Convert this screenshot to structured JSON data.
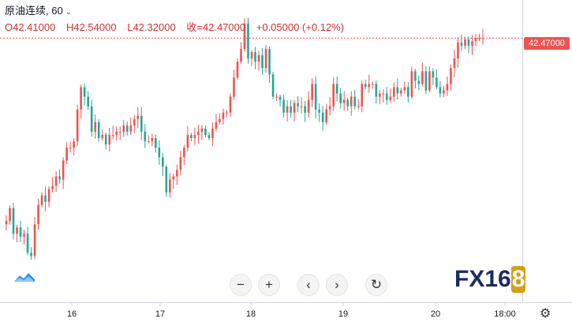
{
  "legend": {
    "symbol": "原油连续, 60",
    "open_label": "O42.41000",
    "high_label": "H42.54000",
    "low_label": "L42.32000",
    "close_label": "收=42.47000",
    "change_label": "+0.05000 (+0.12%)"
  },
  "price_tag": "42.47000",
  "colors": {
    "up": "#ef5350",
    "down": "#26a69a",
    "price_line": "#ef5350",
    "axis": "#d1d4dc"
  },
  "toolbar": {
    "zoom_out": "−",
    "zoom_in": "+",
    "scroll_left": "‹",
    "scroll_right": "›",
    "reset": "↻"
  },
  "watermark": {
    "text_main": "FX16",
    "text_badge": "8"
  },
  "icons": {
    "settings": "gear-icon",
    "tradingview": "tradingview-logo-icon"
  },
  "chart_data": {
    "type": "candlestick",
    "interval": "60",
    "last_price": 42.47,
    "x_ticks": [
      "16",
      "17",
      "18",
      "19",
      "20",
      "18:00"
    ],
    "y_range": [
      38.36,
      42.82
    ],
    "bar_count": 135,
    "closes": [
      39.6,
      39.8,
      39.4,
      39.5,
      39.35,
      39.4,
      39.1,
      39.05,
      39.55,
      39.85,
      40.0,
      39.9,
      40.1,
      40.15,
      40.3,
      40.25,
      40.55,
      40.75,
      40.75,
      40.85,
      41.35,
      41.7,
      41.55,
      41.4,
      41.0,
      41.15,
      40.9,
      40.95,
      40.8,
      40.95,
      40.95,
      41.0,
      41.0,
      41.1,
      41.0,
      41.1,
      41.2,
      41.25,
      41.0,
      40.85,
      40.85,
      40.9,
      40.75,
      40.6,
      40.45,
      40.05,
      40.25,
      40.3,
      40.4,
      40.6,
      40.75,
      40.95,
      40.9,
      40.95,
      41.0,
      41.05,
      40.95,
      40.9,
      41.05,
      41.15,
      41.2,
      41.3,
      41.3,
      41.55,
      41.85,
      42.1,
      42.3,
      42.7,
      42.15,
      42.25,
      42.1,
      42.2,
      42.0,
      42.3,
      41.9,
      41.55,
      41.55,
      41.5,
      41.3,
      41.4,
      41.3,
      41.45,
      41.4,
      41.4,
      41.3,
      41.5,
      41.75,
      41.35,
      41.3,
      41.15,
      41.35,
      41.4,
      41.75,
      41.6,
      41.45,
      41.5,
      41.4,
      41.55,
      41.4,
      41.4,
      41.75,
      41.7,
      41.75,
      41.75,
      41.55,
      41.6,
      41.6,
      41.5,
      41.55,
      41.7,
      41.6,
      41.65,
      41.7,
      41.55,
      41.95,
      41.8,
      41.75,
      41.95,
      41.65,
      41.95,
      41.85,
      41.7,
      41.6,
      41.65,
      41.75,
      42.0,
      42.15,
      42.4,
      42.35,
      42.45,
      42.35,
      42.42,
      42.47,
      42.47,
      42.47
    ],
    "grid": false
  }
}
